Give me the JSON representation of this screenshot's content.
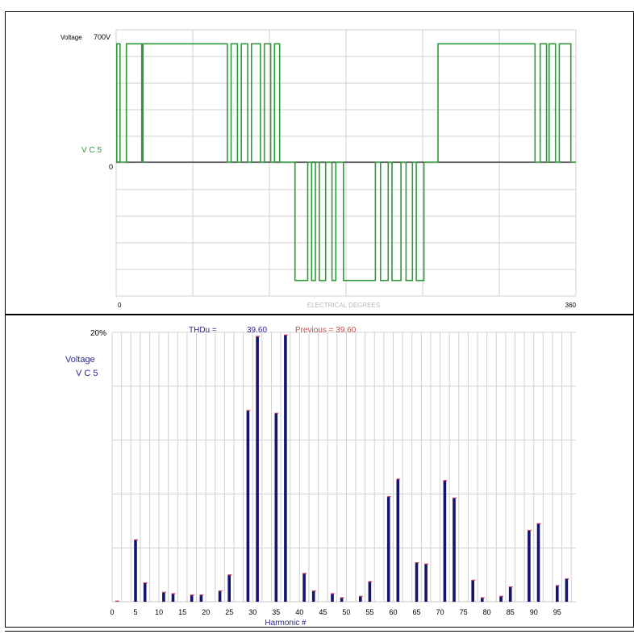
{
  "colors": {
    "waveform": "#2e9a3a",
    "bar": "#14146e",
    "bar_cap": "#d04060",
    "thd_label": "#2b2b8a",
    "previous_label": "#c05050",
    "grid": "#d0d0d0",
    "axis_gray": "#b8b8b8"
  },
  "chart_data": [
    {
      "type": "line",
      "ylabel": "Voltage",
      "ymax_label": "700V",
      "zero_label": "0",
      "series_label": "V C  5",
      "xlabel": "ELECTRICAL DEGREES",
      "x_start_label": "0",
      "x_end_label": "360",
      "xlim": [
        0,
        360
      ],
      "ylim": [
        -700,
        700
      ],
      "grid": true,
      "series": [
        {
          "x": [
            0,
            0.5,
            0.5,
            3,
            3,
            8,
            8,
            20,
            20,
            21,
            21,
            87,
            87,
            90,
            90,
            95,
            95,
            98,
            98,
            103,
            103,
            106,
            106,
            113,
            113,
            116,
            116,
            121,
            121,
            124,
            124,
            128,
            128,
            140,
            140,
            150,
            150,
            153,
            153,
            156,
            156,
            159,
            159,
            164,
            164,
            169,
            169,
            172,
            172,
            178,
            178,
            203,
            203,
            207,
            207,
            213,
            213,
            216,
            216,
            223,
            223,
            227,
            227,
            232,
            232,
            235,
            235,
            241,
            241,
            252,
            252,
            328,
            328,
            332,
            332,
            337,
            337,
            339,
            339,
            344,
            344,
            347,
            347,
            356,
            356,
            360
          ],
          "y": [
            0,
            0,
            680,
            680,
            0,
            0,
            680,
            680,
            0,
            0,
            680,
            680,
            0,
            0,
            680,
            680,
            0,
            0,
            680,
            680,
            0,
            0,
            680,
            680,
            0,
            0,
            680,
            680,
            0,
            0,
            680,
            680,
            0,
            0,
            -680,
            -680,
            0,
            0,
            -680,
            -680,
            0,
            0,
            -680,
            -680,
            0,
            0,
            -680,
            -680,
            0,
            0,
            -680,
            -680,
            0,
            0,
            -680,
            -680,
            0,
            0,
            -680,
            -680,
            0,
            0,
            -680,
            -680,
            0,
            0,
            -680,
            -680,
            0,
            0,
            680,
            680,
            0,
            0,
            680,
            680,
            0,
            0,
            680,
            680,
            0,
            0,
            680,
            680,
            0,
            0
          ]
        }
      ]
    },
    {
      "type": "bar",
      "ytop_label": "20%",
      "ylabel_line1": "Voltage",
      "ylabel_line2": "V C   5",
      "xlabel": "Harmonic #",
      "thd_label": "THDu  =",
      "thd_value": "39.60",
      "previous_text": "Previous =  39.60",
      "xlim": [
        0,
        99
      ],
      "ylim": [
        0,
        20
      ],
      "x_ticks": [
        "0",
        "5",
        "10",
        "15",
        "20",
        "25",
        "30",
        "35",
        "40",
        "45",
        "50",
        "55",
        "60",
        "65",
        "70",
        "75",
        "80",
        "85",
        "90",
        "95"
      ],
      "categories": [
        1,
        5,
        7,
        11,
        13,
        17,
        19,
        23,
        25,
        29,
        31,
        35,
        37,
        41,
        43,
        47,
        49,
        53,
        55,
        59,
        61,
        65,
        67,
        71,
        73,
        77,
        79,
        83,
        85,
        89,
        91,
        95,
        97
      ],
      "values": [
        0,
        4.6,
        1.4,
        0.7,
        0.6,
        0.5,
        0.5,
        0.8,
        2.0,
        14.2,
        19.7,
        14.0,
        19.8,
        2.1,
        0.8,
        0.6,
        0.3,
        0.4,
        1.5,
        7.8,
        9.1,
        2.9,
        2.8,
        9.0,
        7.7,
        1.6,
        0.3,
        0.4,
        1.1,
        5.3,
        5.8,
        1.2,
        1.7
      ]
    }
  ]
}
